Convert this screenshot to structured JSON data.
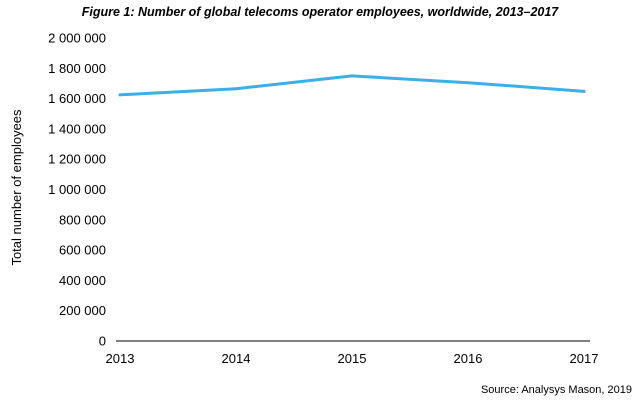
{
  "chart_data": {
    "type": "line",
    "title": "Figure 1: Number of global telecoms operator employees, worldwide, 2013–2017",
    "xlabel": "",
    "ylabel": "Total number of employees",
    "categories": [
      "2013",
      "2014",
      "2015",
      "2016",
      "2017"
    ],
    "series": [
      {
        "values": [
          1625000,
          1665000,
          1750000,
          1705000,
          1648000
        ],
        "color": "#3daee9"
      }
    ],
    "ylim": [
      0,
      2000000
    ],
    "yticks": [
      0,
      200000,
      400000,
      600000,
      800000,
      1000000,
      1200000,
      1400000,
      1600000,
      1800000,
      2000000
    ],
    "ytick_labels": [
      "0",
      "200 000",
      "400 000",
      "600 000",
      "800 000",
      "1 000 000",
      "1 200 000",
      "1 400 000",
      "1 600 000",
      "1 800 000",
      "2 000 000"
    ],
    "grid": false,
    "legend": "none",
    "source": "Source: Analysys Mason, 2019",
    "axis_color": "#000000"
  }
}
